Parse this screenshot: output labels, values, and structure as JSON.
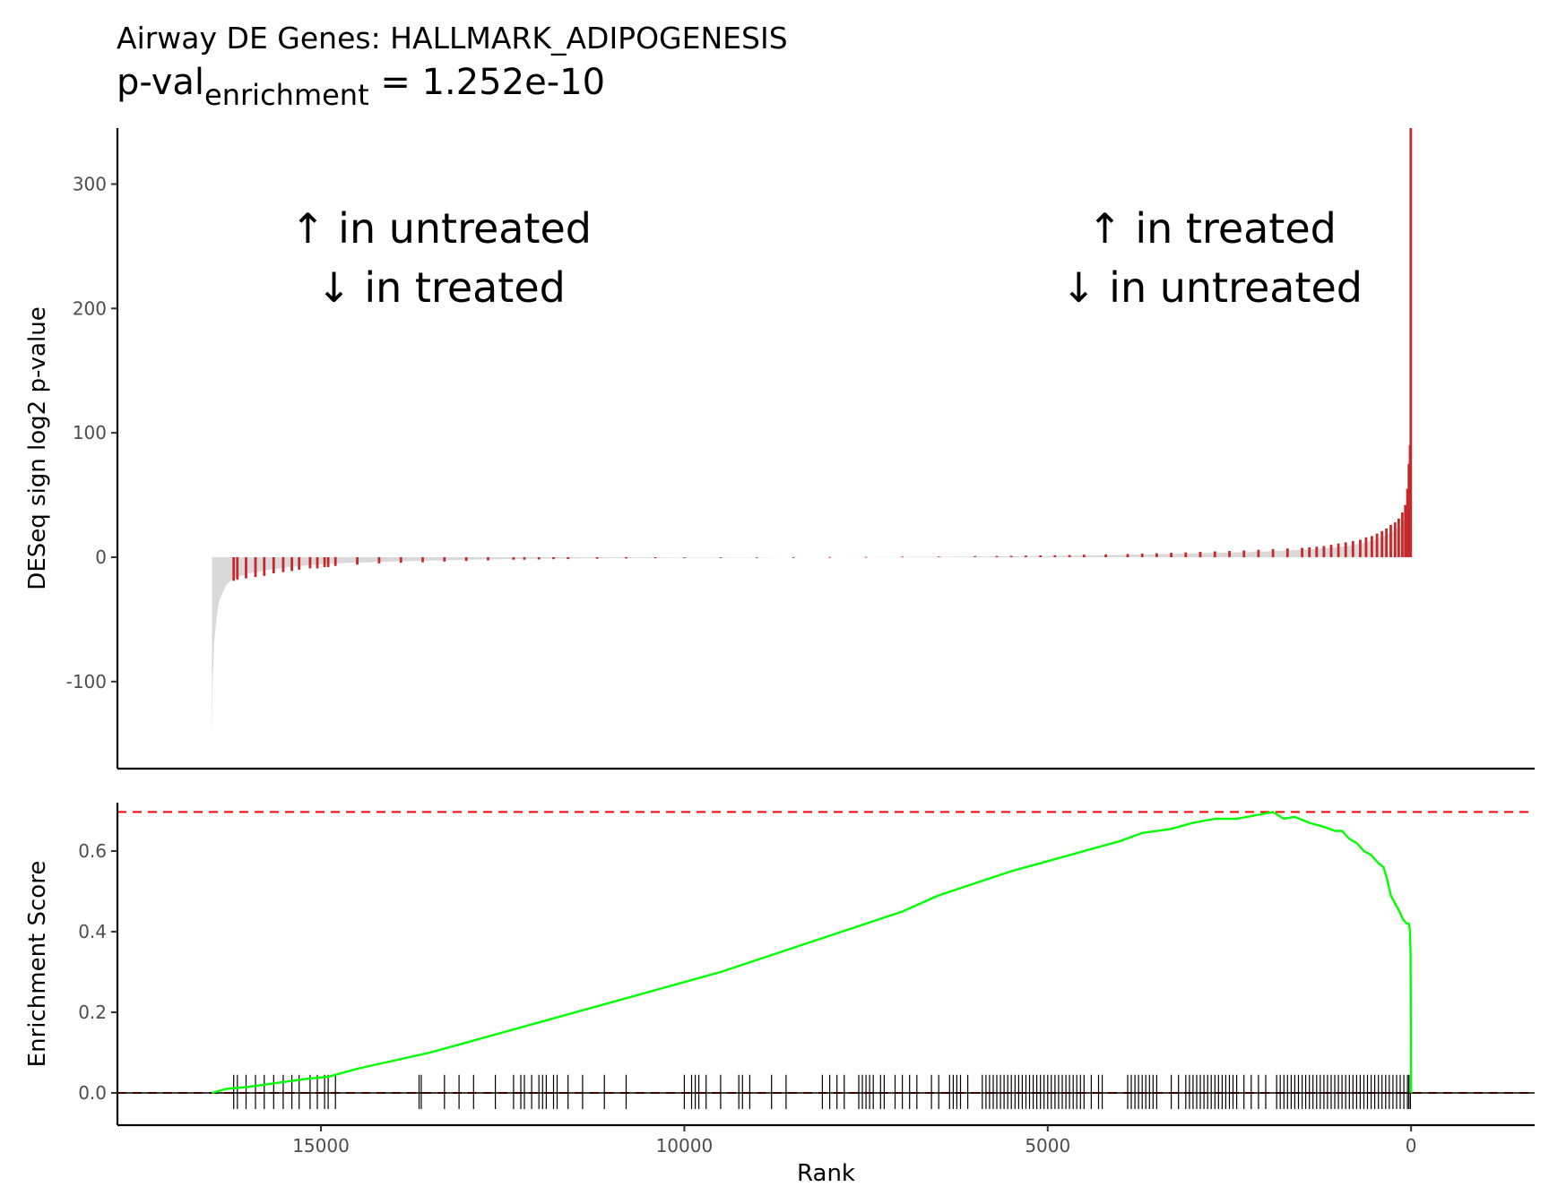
{
  "title": "Airway DE Genes: HALLMARK_ADIPOGENESIS",
  "subtitle": {
    "prefix": "p-val",
    "subscript": "enrichment",
    "suffix": " = 1.252e-10"
  },
  "annotations": {
    "left_line1": "↑ in untreated",
    "left_line2": "↓ in treated",
    "right_line1": "↑ in treated",
    "right_line2": "↓ in untreated"
  },
  "colors": {
    "ranked_area": "#d9d9d9",
    "gene_set_bars": "#c8282a",
    "es_line": "#00ff00",
    "max_es_line": "#ff0000",
    "hit_ticks": "#000000"
  },
  "chart_data": [
    {
      "type": "bar",
      "name": "ranked-metric-panel",
      "ylabel": "DESeq sign log2 p-value",
      "xlabel": "",
      "x_reversed": true,
      "xlim": [
        17800,
        -1700
      ],
      "ylim": [
        -170,
        345
      ],
      "yticks": [
        -100,
        0,
        100,
        200,
        300
      ],
      "ytick_labels": [
        "-100",
        "0",
        "100",
        "200",
        "300"
      ],
      "grid": false,
      "ranked_metric_curve": {
        "rank": [
          16500,
          16490,
          16470,
          16440,
          16400,
          16300,
          16200,
          16000,
          15700,
          15300,
          14800,
          14000,
          13000,
          12000,
          11000,
          10000,
          9000,
          8200,
          7000,
          6000,
          5000,
          4000,
          3000,
          2000,
          1500,
          1000,
          700,
          500,
          300,
          150,
          60,
          20,
          0
        ],
        "value": [
          -145,
          -100,
          -70,
          -50,
          -35,
          -22,
          -17,
          -13,
          -10,
          -7,
          -5,
          -3.5,
          -2,
          -1.2,
          -0.7,
          -0.4,
          -0.15,
          0,
          0.2,
          0.5,
          1,
          1.8,
          3,
          4.5,
          6,
          8,
          11,
          14,
          19,
          25,
          32,
          42,
          72
        ]
      },
      "gene_set_bars": {
        "rank": [
          16200,
          16150,
          16030,
          15900,
          15780,
          15650,
          15520,
          15400,
          15300,
          15150,
          15050,
          14950,
          14900,
          14800,
          14500,
          14200,
          13900,
          13600,
          13300,
          13000,
          12700,
          12350,
          12200,
          12000,
          11800,
          11600,
          11200,
          10800,
          10400,
          10000,
          9500,
          9000,
          8500,
          8000,
          7500,
          7000,
          6500,
          6000,
          5700,
          5500,
          5300,
          5100,
          4900,
          4700,
          4500,
          4200,
          3900,
          3700,
          3500,
          3300,
          3100,
          2900,
          2700,
          2500,
          2300,
          2100,
          1900,
          1700,
          1500,
          1400,
          1300,
          1200,
          1100,
          1000,
          900,
          800,
          700,
          620,
          540,
          470,
          400,
          340,
          280,
          220,
          170,
          120,
          80,
          50,
          30,
          15,
          5
        ],
        "value": [
          -19,
          -18,
          -17,
          -16,
          -15,
          -13,
          -12,
          -11,
          -10,
          -9,
          -9,
          -8,
          -8,
          -7,
          -6,
          -5,
          -4.5,
          -4,
          -3.5,
          -3,
          -2.5,
          -2,
          -2,
          -1.8,
          -1.6,
          -1.5,
          -1.2,
          -1,
          -0.8,
          -0.6,
          -0.4,
          -0.3,
          -0.2,
          0.1,
          0.2,
          0.4,
          0.6,
          0.9,
          1,
          1.1,
          1.3,
          1.5,
          1.6,
          1.8,
          2,
          2.2,
          2.6,
          3,
          3.2,
          3.5,
          3.9,
          4.3,
          4.7,
          5,
          5.4,
          6,
          6.5,
          7,
          7.5,
          8,
          8.5,
          9,
          10,
          11,
          12,
          13,
          14,
          16,
          17,
          19,
          21,
          23,
          26,
          28,
          31,
          36,
          42,
          55,
          75,
          90,
          345
        ]
      }
    },
    {
      "type": "line",
      "name": "enrichment-score-panel",
      "ylabel": "Enrichment Score",
      "xlabel": "Rank",
      "x_reversed": true,
      "xlim": [
        17800,
        -1700
      ],
      "ylim": [
        -0.08,
        0.72
      ],
      "xticks": [
        15000,
        10000,
        5000,
        0
      ],
      "xtick_labels": [
        "15000",
        "10000",
        "5000",
        "0"
      ],
      "yticks": [
        0.0,
        0.2,
        0.4,
        0.6
      ],
      "ytick_labels": [
        "0.0",
        "0.2",
        "0.4",
        "0.6"
      ],
      "grid": false,
      "max_es": 0.697,
      "es_curve": {
        "rank": [
          16500,
          16300,
          16000,
          15600,
          15200,
          14900,
          14500,
          14000,
          13500,
          13000,
          12500,
          12000,
          11500,
          11000,
          10500,
          10000,
          9500,
          9000,
          8500,
          8000,
          7500,
          7000,
          6500,
          6000,
          5500,
          5000,
          4500,
          4000,
          3700,
          3300,
          3000,
          2700,
          2400,
          2100,
          1900,
          1750,
          1600,
          1400,
          1200,
          1050,
          950,
          850,
          750,
          650,
          550,
          450,
          380,
          330,
          280,
          220,
          160,
          110,
          60,
          30,
          15,
          8,
          3,
          0
        ],
        "score": [
          0.0,
          0.01,
          0.015,
          0.025,
          0.035,
          0.04,
          0.06,
          0.08,
          0.1,
          0.125,
          0.15,
          0.175,
          0.2,
          0.225,
          0.25,
          0.275,
          0.3,
          0.33,
          0.36,
          0.39,
          0.42,
          0.45,
          0.49,
          0.52,
          0.55,
          0.575,
          0.6,
          0.625,
          0.645,
          0.655,
          0.67,
          0.68,
          0.68,
          0.69,
          0.697,
          0.68,
          0.685,
          0.67,
          0.66,
          0.65,
          0.65,
          0.63,
          0.62,
          0.6,
          0.59,
          0.57,
          0.56,
          0.53,
          0.49,
          0.47,
          0.45,
          0.43,
          0.42,
          0.42,
          0.4,
          0.35,
          0.2,
          0.0
        ]
      },
      "hit_ranks": [
        16200,
        16150,
        16030,
        15900,
        15780,
        15650,
        15520,
        15400,
        15300,
        15150,
        15050,
        14950,
        14900,
        14800,
        13650,
        13620,
        13300,
        13100,
        12900,
        12600,
        12350,
        12250,
        12200,
        12100,
        12000,
        11950,
        11900,
        11800,
        11750,
        11600,
        11400,
        11100,
        10800,
        10000,
        9900,
        9850,
        9800,
        9700,
        9500,
        9250,
        9200,
        9100,
        8800,
        8600,
        8100,
        8000,
        7900,
        7800,
        7600,
        7550,
        7500,
        7450,
        7400,
        7300,
        7250,
        7100,
        7000,
        6900,
        6800,
        6600,
        6500,
        6350,
        6300,
        6250,
        6200,
        6100,
        5900,
        5850,
        5800,
        5750,
        5700,
        5650,
        5600,
        5550,
        5500,
        5450,
        5400,
        5350,
        5300,
        5250,
        5200,
        5150,
        5100,
        5050,
        5000,
        4950,
        4900,
        4850,
        4800,
        4750,
        4700,
        4650,
        4600,
        4550,
        4500,
        4400,
        4300,
        4250,
        3900,
        3850,
        3800,
        3750,
        3700,
        3650,
        3600,
        3550,
        3500,
        3300,
        3200,
        3100,
        3050,
        3000,
        2950,
        2900,
        2850,
        2800,
        2750,
        2700,
        2650,
        2600,
        2550,
        2500,
        2450,
        2400,
        2300,
        2200,
        2100,
        2000,
        1850,
        1800,
        1750,
        1700,
        1650,
        1600,
        1550,
        1500,
        1450,
        1400,
        1350,
        1300,
        1250,
        1200,
        1150,
        1100,
        1050,
        1000,
        950,
        900,
        850,
        800,
        750,
        700,
        650,
        600,
        550,
        500,
        450,
        400,
        350,
        300,
        250,
        200,
        150,
        100,
        50,
        30,
        10
      ]
    }
  ]
}
